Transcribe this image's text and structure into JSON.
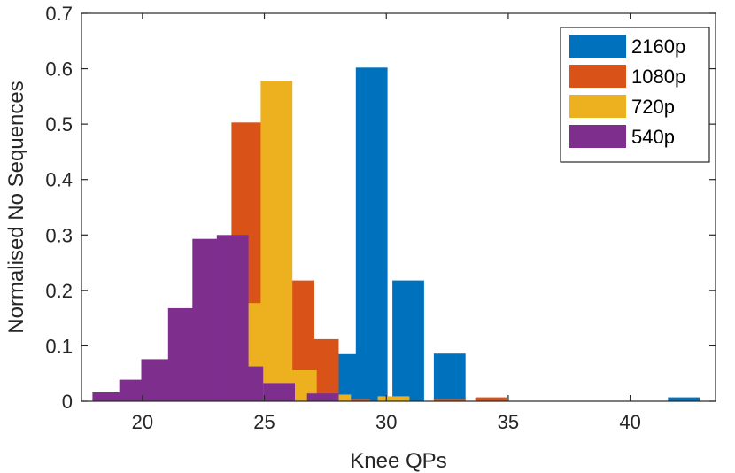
{
  "chart_data": {
    "type": "bar",
    "title": "",
    "xlabel": "Knee QPs",
    "ylabel": "Normalised No Sequences",
    "xlim": [
      17.5,
      43.5
    ],
    "ylim": [
      0,
      0.7
    ],
    "xticks": [
      20,
      25,
      30,
      35,
      40
    ],
    "yticks": [
      0,
      0.1,
      0.2,
      0.3,
      0.4,
      0.5,
      0.6,
      0.7
    ],
    "xtick_labels": [
      "20",
      "25",
      "30",
      "35",
      "40"
    ],
    "ytick_labels": [
      "0",
      "0.1",
      "0.2",
      "0.3",
      "0.4",
      "0.5",
      "0.6",
      "0.7"
    ],
    "grid": false,
    "legend_position": "top-right",
    "bar_width": 1.3,
    "series": [
      {
        "name": "2160p",
        "color": "#0072BD",
        "x": [
          28.2,
          29.4,
          30.9,
          32.6,
          42.2
        ],
        "values": [
          0.085,
          0.602,
          0.218,
          0.086,
          0.007
        ]
      },
      {
        "name": "1080p",
        "color": "#D95319",
        "x": [
          21.3,
          22.7,
          24.3,
          26.4,
          27.4,
          28.7,
          32.6,
          34.3
        ],
        "values": [
          0.007,
          0.045,
          0.503,
          0.218,
          0.112,
          0.004,
          0.004,
          0.007
        ]
      },
      {
        "name": "720p",
        "color": "#EDB120",
        "x": [
          20.9,
          22.1,
          23.1,
          24.4,
          25.5,
          26.5,
          27.9,
          30.3
        ],
        "values": [
          0.012,
          0.035,
          0.115,
          0.177,
          0.578,
          0.056,
          0.012,
          0.009
        ]
      },
      {
        "name": "540p",
        "color": "#7E2F8E",
        "x": [
          18.6,
          19.7,
          20.6,
          21.7,
          22.7,
          23.7,
          24.3,
          25.6,
          27.4
        ],
        "values": [
          0.016,
          0.039,
          0.076,
          0.168,
          0.293,
          0.3,
          0.063,
          0.033,
          0.014
        ]
      }
    ]
  }
}
